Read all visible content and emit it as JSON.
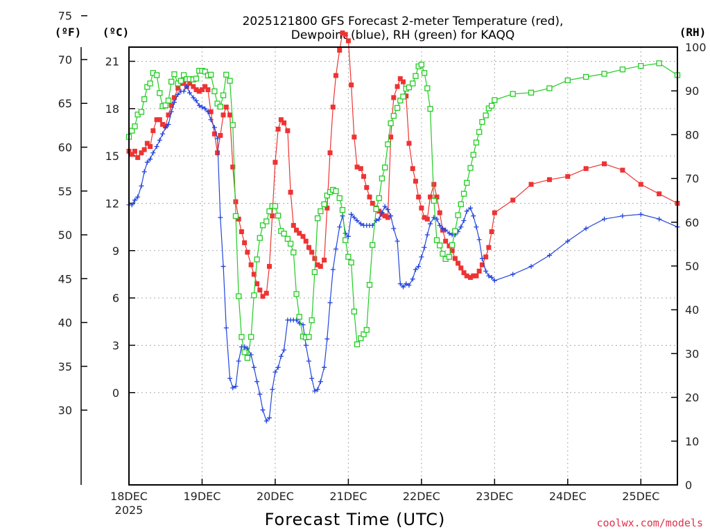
{
  "chart_data": {
    "type": "line",
    "title_line1": "2025121800 GFS Forecast 2-meter Temperature (red),",
    "title_line2": "Dewpoint (blue), RH (green) for KAQQ",
    "xlabel": "Forecast Time (UTC)",
    "watermark": "coolwx.com/models",
    "unit_f": "(ºF)",
    "unit_c": "(ºC)",
    "unit_rh": "(RH)",
    "xlim_days": [
      0,
      7.5
    ],
    "x_ticks": [
      {
        "d": 0,
        "label": "18DEC",
        "sub": "2025"
      },
      {
        "d": 1,
        "label": "19DEC",
        "sub": ""
      },
      {
        "d": 2,
        "label": "20DEC",
        "sub": ""
      },
      {
        "d": 3,
        "label": "21DEC",
        "sub": ""
      },
      {
        "d": 4,
        "label": "22DEC",
        "sub": ""
      },
      {
        "d": 5,
        "label": "23DEC",
        "sub": ""
      },
      {
        "d": 6,
        "label": "24DEC",
        "sub": ""
      },
      {
        "d": 7,
        "label": "25DEC",
        "sub": ""
      }
    ],
    "celsius_axis": {
      "range": [
        -5.85,
        21.9
      ],
      "ticks": [
        "0",
        "3",
        "6",
        "9",
        "12",
        "15",
        "18",
        "21"
      ]
    },
    "fahrenheit_axis": {
      "range": [
        21.47,
        71.42
      ],
      "ticks": [
        "30",
        "35",
        "40",
        "45",
        "50",
        "55",
        "60",
        "65",
        "70",
        "75"
      ]
    },
    "rh_axis": {
      "range": [
        0,
        100
      ],
      "ticks": [
        "0",
        "10",
        "20",
        "30",
        "40",
        "50",
        "60",
        "70",
        "80",
        "90",
        "100"
      ]
    },
    "series": [
      {
        "name": "Temperature",
        "color": "#ee3333",
        "marker": "square-filled",
        "x": [
          0,
          0.04,
          0.08,
          0.12,
          0.17,
          0.21,
          0.25,
          0.29,
          0.33,
          0.38,
          0.42,
          0.46,
          0.5,
          0.54,
          0.58,
          0.62,
          0.67,
          0.71,
          0.75,
          0.79,
          0.83,
          0.88,
          0.92,
          0.96,
          1,
          1.04,
          1.08,
          1.12,
          1.17,
          1.21,
          1.25,
          1.29,
          1.33,
          1.38,
          1.42,
          1.46,
          1.5,
          1.54,
          1.58,
          1.62,
          1.67,
          1.71,
          1.75,
          1.79,
          1.83,
          1.88,
          1.92,
          1.96,
          2,
          2.04,
          2.08,
          2.12,
          2.17,
          2.21,
          2.25,
          2.29,
          2.33,
          2.38,
          2.42,
          2.46,
          2.5,
          2.54,
          2.58,
          2.62,
          2.67,
          2.71,
          2.75,
          2.79,
          2.83,
          2.88,
          2.92,
          2.96,
          3,
          3.04,
          3.08,
          3.12,
          3.17,
          3.21,
          3.25,
          3.29,
          3.33,
          3.38,
          3.42,
          3.46,
          3.5,
          3.54,
          3.58,
          3.62,
          3.67,
          3.71,
          3.75,
          3.79,
          3.83,
          3.88,
          3.92,
          3.96,
          4,
          4.04,
          4.08,
          4.12,
          4.17,
          4.21,
          4.25,
          4.29,
          4.33,
          4.38,
          4.42,
          4.46,
          4.5,
          4.54,
          4.58,
          4.62,
          4.67,
          4.71,
          4.75,
          4.79,
          4.83,
          4.88,
          4.92,
          4.96,
          5,
          5.25,
          5.5,
          5.75,
          6,
          6.25,
          6.5,
          6.75,
          7,
          7.25,
          7.5
        ],
        "values": [
          15.3,
          15.1,
          15.3,
          14.9,
          15.2,
          15.4,
          15.8,
          15.6,
          16.6,
          17.3,
          17.3,
          17.0,
          16.9,
          17.6,
          18.2,
          18.7,
          19.3,
          19.6,
          19.6,
          19.4,
          19.6,
          19.4,
          19.2,
          19.1,
          19.2,
          19.4,
          19.2,
          17.8,
          16.4,
          15.2,
          16.3,
          17.6,
          18.1,
          17.6,
          14.3,
          12.1,
          11.0,
          10.2,
          9.5,
          8.9,
          8.1,
          7.5,
          6.9,
          6.5,
          6.1,
          6.3,
          8.0,
          11.2,
          14.6,
          16.7,
          17.3,
          17.1,
          16.6,
          12.7,
          10.6,
          10.3,
          10.1,
          9.9,
          9.6,
          9.2,
          8.9,
          8.5,
          8.1,
          8.0,
          8.4,
          11.7,
          15.2,
          18.1,
          20.1,
          21.7,
          22.8,
          22.7,
          22.3,
          19.5,
          16.2,
          14.3,
          14.2,
          13.7,
          13.0,
          12.4,
          12.0,
          11.7,
          11.5,
          11.3,
          11.2,
          11.1,
          16.2,
          18.7,
          19.4,
          19.9,
          19.7,
          18.8,
          15.8,
          14.2,
          13.4,
          12.4,
          11.7,
          11.1,
          11.0,
          12.4,
          13.2,
          12.4,
          11.4,
          10.3,
          9.6,
          9.3,
          9.0,
          8.5,
          8.2,
          7.9,
          7.6,
          7.4,
          7.3,
          7.4,
          7.4,
          7.7,
          8.1,
          8.6,
          9.2,
          10.2,
          11.4,
          12.2,
          13.2,
          13.5,
          13.7,
          14.2,
          14.5,
          14.1,
          13.2,
          12.6,
          12.0
        ]
      },
      {
        "name": "Dewpoint",
        "color": "#2244dd",
        "marker": "plus",
        "x": [
          0,
          0.04,
          0.08,
          0.12,
          0.17,
          0.21,
          0.25,
          0.29,
          0.33,
          0.38,
          0.42,
          0.46,
          0.5,
          0.54,
          0.58,
          0.62,
          0.67,
          0.71,
          0.75,
          0.79,
          0.83,
          0.88,
          0.92,
          0.96,
          1,
          1.04,
          1.08,
          1.12,
          1.17,
          1.21,
          1.25,
          1.29,
          1.33,
          1.38,
          1.42,
          1.46,
          1.5,
          1.54,
          1.58,
          1.62,
          1.67,
          1.71,
          1.75,
          1.79,
          1.83,
          1.88,
          1.92,
          1.96,
          2,
          2.04,
          2.08,
          2.12,
          2.17,
          2.21,
          2.25,
          2.29,
          2.33,
          2.38,
          2.42,
          2.46,
          2.5,
          2.54,
          2.58,
          2.62,
          2.67,
          2.71,
          2.75,
          2.79,
          2.83,
          2.88,
          2.92,
          2.96,
          3,
          3.04,
          3.08,
          3.12,
          3.17,
          3.21,
          3.25,
          3.29,
          3.33,
          3.38,
          3.42,
          3.46,
          3.5,
          3.54,
          3.58,
          3.62,
          3.67,
          3.71,
          3.75,
          3.79,
          3.83,
          3.88,
          3.92,
          3.96,
          4,
          4.04,
          4.08,
          4.12,
          4.17,
          4.21,
          4.25,
          4.29,
          4.33,
          4.38,
          4.42,
          4.46,
          4.5,
          4.54,
          4.58,
          4.62,
          4.67,
          4.71,
          4.75,
          4.79,
          4.83,
          4.88,
          4.92,
          4.96,
          5,
          5.25,
          5.5,
          5.75,
          6,
          6.25,
          6.5,
          6.75,
          7,
          7.25,
          7.5
        ],
        "values": [
          11.9,
          11.9,
          12.2,
          12.4,
          13.1,
          14.0,
          14.6,
          14.8,
          15.2,
          15.6,
          16.0,
          16.4,
          16.8,
          17.0,
          17.8,
          18.4,
          18.9,
          19.1,
          19.1,
          19.4,
          19.0,
          18.7,
          18.5,
          18.2,
          18.1,
          18.0,
          17.8,
          17.3,
          16.8,
          16.1,
          11.1,
          8.0,
          4.1,
          0.9,
          0.3,
          0.4,
          2.0,
          2.9,
          2.9,
          2.8,
          2.4,
          1.6,
          0.7,
          -0.1,
          -1.1,
          -1.8,
          -1.6,
          0.2,
          1.3,
          1.6,
          2.3,
          2.7,
          4.6,
          4.6,
          4.6,
          4.6,
          4.4,
          4.3,
          3.0,
          2.0,
          0.9,
          0.1,
          0.2,
          0.7,
          1.6,
          3.4,
          5.7,
          7.8,
          9.1,
          10.5,
          11.2,
          10.1,
          9.9,
          11.3,
          11.1,
          10.9,
          10.7,
          10.6,
          10.6,
          10.6,
          10.6,
          10.9,
          11.0,
          11.4,
          11.8,
          11.6,
          11.2,
          10.4,
          9.6,
          6.9,
          6.7,
          6.9,
          6.8,
          7.2,
          7.8,
          8.0,
          8.6,
          9.2,
          10.0,
          10.7,
          11.1,
          11.0,
          10.6,
          10.4,
          10.3,
          10.1,
          10.0,
          10.0,
          10.2,
          10.5,
          10.9,
          11.5,
          11.7,
          11.2,
          10.5,
          9.7,
          8.5,
          7.7,
          7.4,
          7.3,
          7.1,
          7.5,
          8.0,
          8.7,
          9.6,
          10.4,
          11.0,
          11.2,
          11.3,
          11.0,
          10.5
        ]
      },
      {
        "name": "RH",
        "color": "#22cc22",
        "marker": "square-open",
        "x": [
          0,
          0.04,
          0.08,
          0.12,
          0.17,
          0.21,
          0.25,
          0.29,
          0.33,
          0.38,
          0.42,
          0.46,
          0.5,
          0.54,
          0.58,
          0.62,
          0.67,
          0.71,
          0.75,
          0.79,
          0.83,
          0.88,
          0.92,
          0.96,
          1,
          1.04,
          1.08,
          1.12,
          1.17,
          1.21,
          1.25,
          1.29,
          1.33,
          1.38,
          1.42,
          1.46,
          1.5,
          1.54,
          1.58,
          1.62,
          1.67,
          1.71,
          1.75,
          1.79,
          1.83,
          1.88,
          1.92,
          1.96,
          2,
          2.04,
          2.08,
          2.12,
          2.17,
          2.21,
          2.25,
          2.29,
          2.33,
          2.38,
          2.42,
          2.46,
          2.5,
          2.54,
          2.58,
          2.62,
          2.67,
          2.71,
          2.75,
          2.79,
          2.83,
          2.88,
          2.92,
          2.96,
          3,
          3.04,
          3.08,
          3.12,
          3.17,
          3.21,
          3.25,
          3.29,
          3.33,
          3.38,
          3.42,
          3.46,
          3.5,
          3.54,
          3.58,
          3.62,
          3.67,
          3.71,
          3.75,
          3.79,
          3.83,
          3.88,
          3.92,
          3.96,
          4,
          4.04,
          4.08,
          4.12,
          4.17,
          4.21,
          4.25,
          4.29,
          4.33,
          4.38,
          4.42,
          4.46,
          4.5,
          4.54,
          4.58,
          4.62,
          4.67,
          4.71,
          4.75,
          4.79,
          4.83,
          4.88,
          4.92,
          4.96,
          5,
          5.25,
          5.5,
          5.75,
          6,
          6.25,
          6.5,
          6.75,
          7,
          7.25,
          7.5
        ],
        "values": [
          79.5,
          80.9,
          81.9,
          84.6,
          85.2,
          88.1,
          90.9,
          91.7,
          94.1,
          93.6,
          89.5,
          86.5,
          86.7,
          87.8,
          92.1,
          93.8,
          91.7,
          92.3,
          93.6,
          92.7,
          92.7,
          92.6,
          92.8,
          94.6,
          94.6,
          94.4,
          93.5,
          93.7,
          89.9,
          87.1,
          86.4,
          89.0,
          93.7,
          92.3,
          82.2,
          61.4,
          43.1,
          33.8,
          30.3,
          29.0,
          33.8,
          43.3,
          51.5,
          56.4,
          59.3,
          60.2,
          62.5,
          63.7,
          63.7,
          61.5,
          58.0,
          57.4,
          56.2,
          55.1,
          53.1,
          43.6,
          38.4,
          33.9,
          33.7,
          33.8,
          37.6,
          48.6,
          60.9,
          62.5,
          64.1,
          66.1,
          66.9,
          67.4,
          67.1,
          65.5,
          62.8,
          55.9,
          52.1,
          50.8,
          39.6,
          32.1,
          33.5,
          34.4,
          35.4,
          45.7,
          54.8,
          63.0,
          65.5,
          70.0,
          72.5,
          77.8,
          82.6,
          84.3,
          86.1,
          87.8,
          88.7,
          90.5,
          90.8,
          91.7,
          93.4,
          95.6,
          96.0,
          94.1,
          90.6,
          85.9,
          64.9,
          55.9,
          54.7,
          52.8,
          51.6,
          52.1,
          54.8,
          58.0,
          61.6,
          64.1,
          66.5,
          69.0,
          72.4,
          75.4,
          78.2,
          80.6,
          82.9,
          84.4,
          86.0,
          86.6,
          87.9,
          89.3,
          89.6,
          90.6,
          92.4,
          93.2,
          93.9,
          94.9,
          95.7,
          96.3,
          93.6
        ]
      }
    ]
  }
}
